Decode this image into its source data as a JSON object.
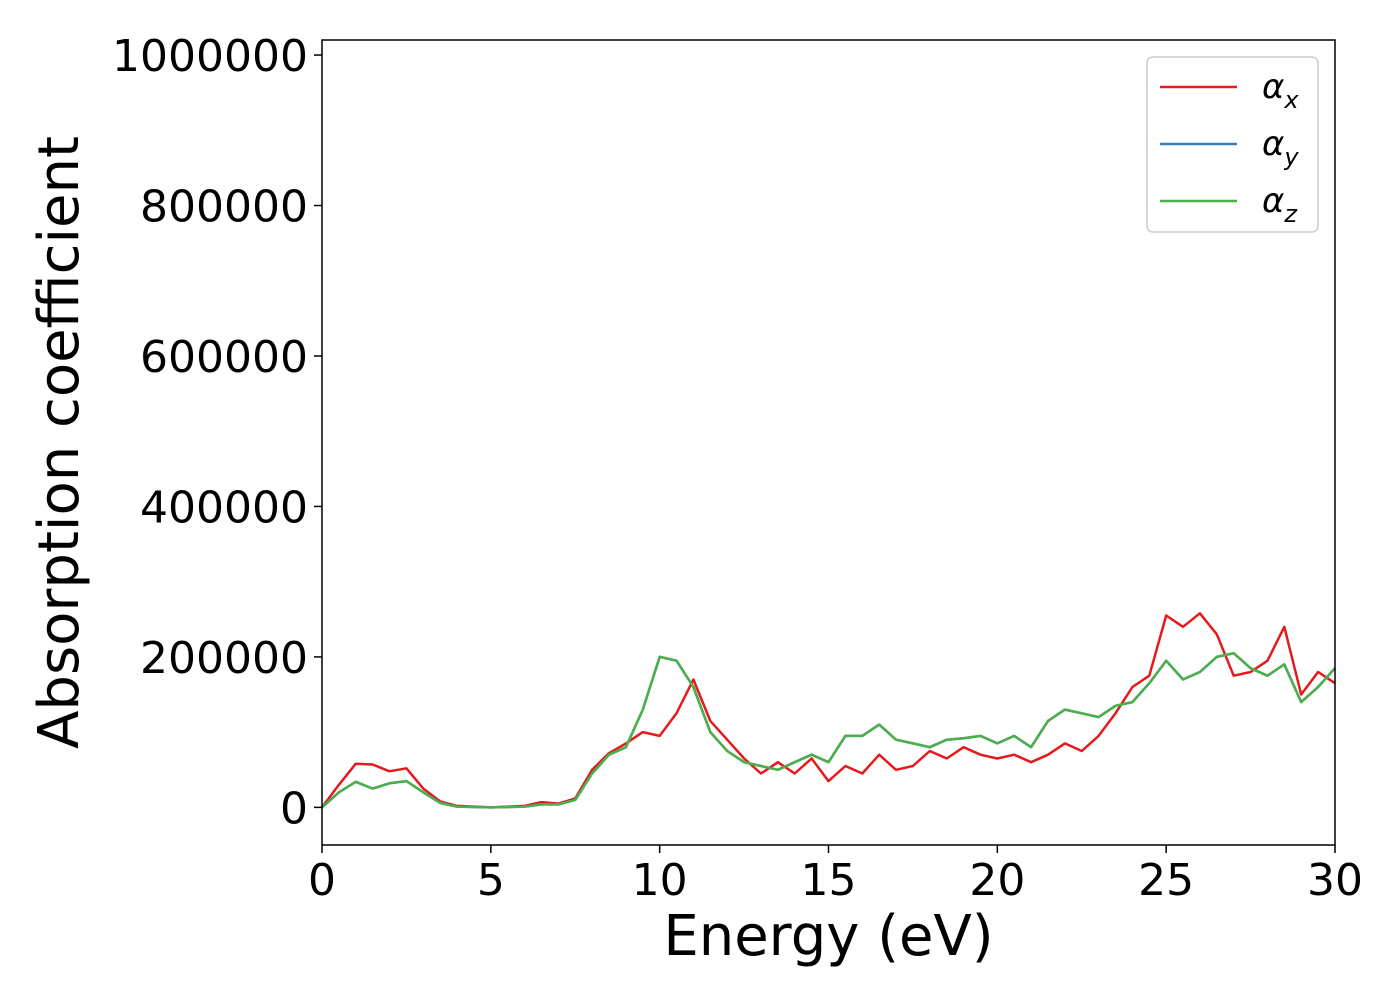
{
  "chart_data": {
    "type": "line",
    "xlabel": "Energy (eV)",
    "ylabel": "Absorption coefficient",
    "xlim": [
      0,
      30
    ],
    "ylim": [
      -50000,
      1020000
    ],
    "x_ticks": [
      0,
      5,
      10,
      15,
      20,
      25,
      30
    ],
    "y_ticks": [
      0,
      200000,
      400000,
      600000,
      800000,
      1000000
    ],
    "grid": false,
    "legend_placement": "top-right",
    "series": [
      {
        "name": "αx",
        "label_main": "α",
        "label_sub": "x",
        "color": "#e41a1c",
        "x": [
          0,
          0.5,
          1,
          1.5,
          2,
          2.5,
          3,
          3.5,
          4,
          5,
          6,
          6.5,
          7,
          7.5,
          8,
          8.5,
          9,
          9.5,
          10,
          10.5,
          11,
          11.5,
          12,
          12.5,
          13,
          13.5,
          14,
          14.5,
          15,
          15.5,
          16,
          16.5,
          17,
          17.5,
          18,
          18.5,
          19,
          19.5,
          20,
          20.5,
          21,
          21.5,
          22,
          22.5,
          23,
          23.5,
          24,
          24.5,
          25,
          25.5,
          26,
          26.5,
          27,
          27.5,
          28,
          28.5,
          29,
          29.5,
          30
        ],
        "y": [
          0,
          30000,
          58000,
          57000,
          48000,
          52000,
          25000,
          8000,
          2000,
          0,
          2000,
          7000,
          5000,
          12000,
          50000,
          72000,
          85000,
          100000,
          95000,
          125000,
          170000,
          115000,
          90000,
          65000,
          45000,
          60000,
          45000,
          65000,
          35000,
          55000,
          45000,
          70000,
          50000,
          55000,
          75000,
          65000,
          80000,
          70000,
          65000,
          70000,
          60000,
          70000,
          85000,
          75000,
          95000,
          125000,
          160000,
          175000,
          255000,
          240000,
          258000,
          230000,
          175000,
          180000,
          195000,
          240000,
          150000,
          180000,
          165000
        ]
      },
      {
        "name": "αy",
        "label_main": "α",
        "label_sub": "y",
        "color": "#377eb8",
        "x": [
          0,
          0.5,
          1,
          1.5,
          2,
          2.5,
          3,
          3.5,
          4,
          5,
          6,
          6.5,
          7,
          7.5,
          8,
          8.5,
          9,
          9.5,
          10,
          10.5,
          11,
          11.5,
          12,
          12.5,
          13,
          13.5,
          14,
          14.5,
          15,
          15.5,
          16,
          16.5,
          17,
          17.5,
          18,
          18.5,
          19,
          19.5,
          20,
          20.5,
          21,
          21.5,
          22,
          22.5,
          23,
          23.5,
          24,
          24.5,
          25,
          25.5,
          26,
          26.5,
          27,
          27.5,
          28,
          28.5,
          29,
          29.5,
          30
        ],
        "y": [
          0,
          20000,
          34000,
          25000,
          32000,
          35000,
          20000,
          6000,
          1000,
          0,
          1000,
          4000,
          4000,
          10000,
          45000,
          70000,
          80000,
          130000,
          200000,
          195000,
          160000,
          100000,
          75000,
          60000,
          55000,
          50000,
          60000,
          70000,
          60000,
          95000,
          95000,
          110000,
          90000,
          85000,
          80000,
          90000,
          92000,
          95000,
          85000,
          95000,
          80000,
          115000,
          130000,
          125000,
          120000,
          135000,
          140000,
          165000,
          195000,
          170000,
          180000,
          200000,
          205000,
          185000,
          175000,
          190000,
          140000,
          160000,
          185000
        ]
      },
      {
        "name": "αz",
        "label_main": "α",
        "label_sub": "z",
        "color": "#4daf4a",
        "x": [
          0,
          0.5,
          1,
          1.5,
          2,
          2.5,
          3,
          3.5,
          4,
          5,
          6,
          6.5,
          7,
          7.5,
          8,
          8.5,
          9,
          9.5,
          10,
          10.5,
          11,
          11.5,
          12,
          12.5,
          13,
          13.5,
          14,
          14.5,
          15,
          15.5,
          16,
          16.5,
          17,
          17.5,
          18,
          18.5,
          19,
          19.5,
          20,
          20.5,
          21,
          21.5,
          22,
          22.5,
          23,
          23.5,
          24,
          24.5,
          25,
          25.5,
          26,
          26.5,
          27,
          27.5,
          28,
          28.5,
          29,
          29.5,
          30
        ],
        "y": [
          0,
          20000,
          34000,
          25000,
          32000,
          35000,
          20000,
          6000,
          1000,
          0,
          1000,
          4000,
          4000,
          10000,
          45000,
          70000,
          80000,
          130000,
          200000,
          195000,
          160000,
          100000,
          75000,
          60000,
          55000,
          50000,
          60000,
          70000,
          60000,
          95000,
          95000,
          110000,
          90000,
          85000,
          80000,
          90000,
          92000,
          95000,
          85000,
          95000,
          80000,
          115000,
          130000,
          125000,
          120000,
          135000,
          140000,
          165000,
          195000,
          170000,
          180000,
          200000,
          205000,
          185000,
          175000,
          190000,
          140000,
          160000,
          185000
        ]
      }
    ]
  }
}
